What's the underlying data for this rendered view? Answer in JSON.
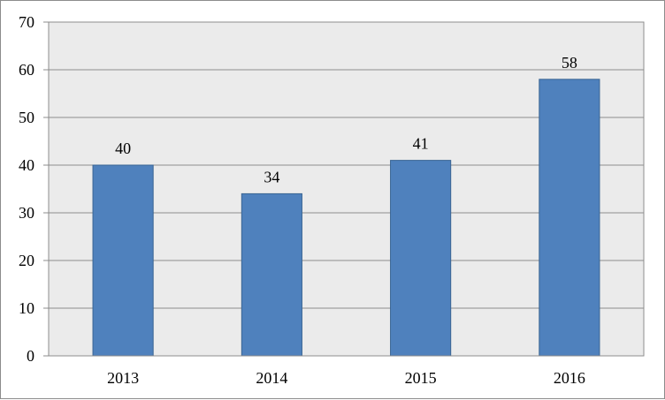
{
  "chart_data": {
    "type": "bar",
    "title": "",
    "xlabel": "",
    "ylabel": "",
    "categories": [
      "2013",
      "2014",
      "2015",
      "2016"
    ],
    "values": [
      40,
      34,
      41,
      58
    ],
    "data_labels": [
      "40",
      "34",
      "41",
      "58"
    ],
    "ylim": [
      0,
      70
    ],
    "y_ticks": [
      "0",
      "10",
      "20",
      "30",
      "40",
      "50",
      "60",
      "70"
    ],
    "grid": true,
    "legend": "none",
    "colors": {
      "bar_fill": "#4f81bd",
      "bar_stroke": "#3a6593",
      "plot_background": "#ebebeb",
      "gridline": "#8c8c8c"
    }
  }
}
